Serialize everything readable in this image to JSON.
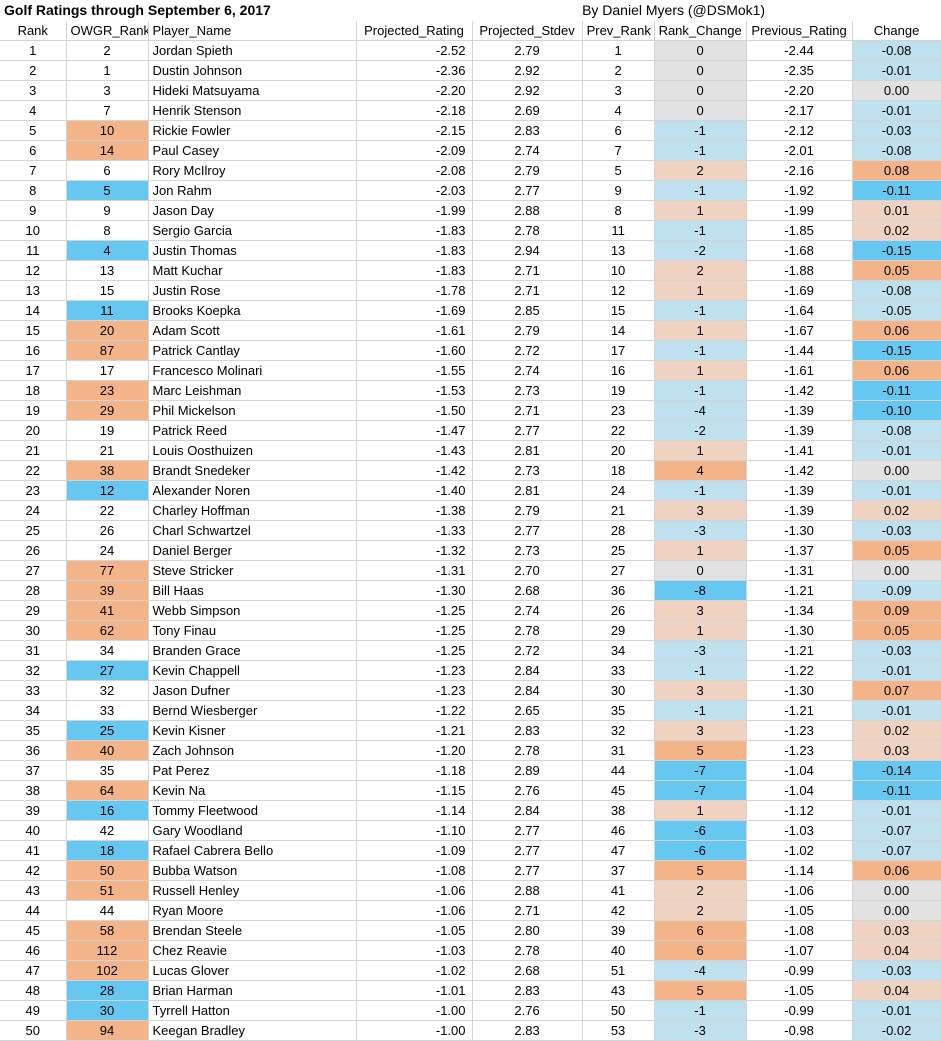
{
  "title": "Golf Ratings through September 6, 2017",
  "byline": "By Daniel Myers (@DSMok1)",
  "colors": {
    "blue_strong": "#66c8f0",
    "blue_light": "#bfe0ee",
    "orange_strong": "#f4b48a",
    "orange_light": "#efd2c2",
    "gray_neutral": "#e2e2e2"
  },
  "headers": [
    "Rank",
    "OWGR_Rank",
    "Player_Name",
    "Projected_Rating",
    "Projected_Stdev",
    "Prev_Rank",
    "Rank_Change",
    "Previous_Rating",
    "Change"
  ],
  "rows": [
    {
      "rank": "1",
      "owgr": "2",
      "name": "Jordan Spieth",
      "proj": "-2.52",
      "stdev": "2.79",
      "prev_rank": "1",
      "rank_change": "0",
      "prev_rating": "-2.44",
      "change": "-0.08"
    },
    {
      "rank": "2",
      "owgr": "1",
      "name": "Dustin Johnson",
      "proj": "-2.36",
      "stdev": "2.92",
      "prev_rank": "2",
      "rank_change": "0",
      "prev_rating": "-2.35",
      "change": "-0.01"
    },
    {
      "rank": "3",
      "owgr": "3",
      "name": "Hideki Matsuyama",
      "proj": "-2.20",
      "stdev": "2.92",
      "prev_rank": "3",
      "rank_change": "0",
      "prev_rating": "-2.20",
      "change": "0.00"
    },
    {
      "rank": "4",
      "owgr": "7",
      "name": "Henrik Stenson",
      "proj": "-2.18",
      "stdev": "2.69",
      "prev_rank": "4",
      "rank_change": "0",
      "prev_rating": "-2.17",
      "change": "-0.01"
    },
    {
      "rank": "5",
      "owgr": "10",
      "name": "Rickie Fowler",
      "proj": "-2.15",
      "stdev": "2.83",
      "prev_rank": "6",
      "rank_change": "-1",
      "prev_rating": "-2.12",
      "change": "-0.03"
    },
    {
      "rank": "6",
      "owgr": "14",
      "name": "Paul Casey",
      "proj": "-2.09",
      "stdev": "2.74",
      "prev_rank": "7",
      "rank_change": "-1",
      "prev_rating": "-2.01",
      "change": "-0.08"
    },
    {
      "rank": "7",
      "owgr": "6",
      "name": "Rory McIlroy",
      "proj": "-2.08",
      "stdev": "2.79",
      "prev_rank": "5",
      "rank_change": "2",
      "prev_rating": "-2.16",
      "change": "0.08"
    },
    {
      "rank": "8",
      "owgr": "5",
      "name": "Jon Rahm",
      "proj": "-2.03",
      "stdev": "2.77",
      "prev_rank": "9",
      "rank_change": "-1",
      "prev_rating": "-1.92",
      "change": "-0.11"
    },
    {
      "rank": "9",
      "owgr": "9",
      "name": "Jason Day",
      "proj": "-1.99",
      "stdev": "2.88",
      "prev_rank": "8",
      "rank_change": "1",
      "prev_rating": "-1.99",
      "change": "0.01"
    },
    {
      "rank": "10",
      "owgr": "8",
      "name": "Sergio Garcia",
      "proj": "-1.83",
      "stdev": "2.78",
      "prev_rank": "11",
      "rank_change": "-1",
      "prev_rating": "-1.85",
      "change": "0.02"
    },
    {
      "rank": "11",
      "owgr": "4",
      "name": "Justin Thomas",
      "proj": "-1.83",
      "stdev": "2.94",
      "prev_rank": "13",
      "rank_change": "-2",
      "prev_rating": "-1.68",
      "change": "-0.15"
    },
    {
      "rank": "12",
      "owgr": "13",
      "name": "Matt Kuchar",
      "proj": "-1.83",
      "stdev": "2.71",
      "prev_rank": "10",
      "rank_change": "2",
      "prev_rating": "-1.88",
      "change": "0.05"
    },
    {
      "rank": "13",
      "owgr": "15",
      "name": "Justin Rose",
      "proj": "-1.78",
      "stdev": "2.71",
      "prev_rank": "12",
      "rank_change": "1",
      "prev_rating": "-1.69",
      "change": "-0.08"
    },
    {
      "rank": "14",
      "owgr": "11",
      "name": "Brooks Koepka",
      "proj": "-1.69",
      "stdev": "2.85",
      "prev_rank": "15",
      "rank_change": "-1",
      "prev_rating": "-1.64",
      "change": "-0.05"
    },
    {
      "rank": "15",
      "owgr": "20",
      "name": "Adam Scott",
      "proj": "-1.61",
      "stdev": "2.79",
      "prev_rank": "14",
      "rank_change": "1",
      "prev_rating": "-1.67",
      "change": "0.06"
    },
    {
      "rank": "16",
      "owgr": "87",
      "name": "Patrick Cantlay",
      "proj": "-1.60",
      "stdev": "2.72",
      "prev_rank": "17",
      "rank_change": "-1",
      "prev_rating": "-1.44",
      "change": "-0.15"
    },
    {
      "rank": "17",
      "owgr": "17",
      "name": "Francesco Molinari",
      "proj": "-1.55",
      "stdev": "2.74",
      "prev_rank": "16",
      "rank_change": "1",
      "prev_rating": "-1.61",
      "change": "0.06"
    },
    {
      "rank": "18",
      "owgr": "23",
      "name": "Marc Leishman",
      "proj": "-1.53",
      "stdev": "2.73",
      "prev_rank": "19",
      "rank_change": "-1",
      "prev_rating": "-1.42",
      "change": "-0.11"
    },
    {
      "rank": "19",
      "owgr": "29",
      "name": "Phil Mickelson",
      "proj": "-1.50",
      "stdev": "2.71",
      "prev_rank": "23",
      "rank_change": "-4",
      "prev_rating": "-1.39",
      "change": "-0.10"
    },
    {
      "rank": "20",
      "owgr": "19",
      "name": "Patrick Reed",
      "proj": "-1.47",
      "stdev": "2.77",
      "prev_rank": "22",
      "rank_change": "-2",
      "prev_rating": "-1.39",
      "change": "-0.08"
    },
    {
      "rank": "21",
      "owgr": "21",
      "name": "Louis Oosthuizen",
      "proj": "-1.43",
      "stdev": "2.81",
      "prev_rank": "20",
      "rank_change": "1",
      "prev_rating": "-1.41",
      "change": "-0.01"
    },
    {
      "rank": "22",
      "owgr": "38",
      "name": "Brandt Snedeker",
      "proj": "-1.42",
      "stdev": "2.73",
      "prev_rank": "18",
      "rank_change": "4",
      "prev_rating": "-1.42",
      "change": "0.00"
    },
    {
      "rank": "23",
      "owgr": "12",
      "name": "Alexander Noren",
      "proj": "-1.40",
      "stdev": "2.81",
      "prev_rank": "24",
      "rank_change": "-1",
      "prev_rating": "-1.39",
      "change": "-0.01"
    },
    {
      "rank": "24",
      "owgr": "22",
      "name": "Charley Hoffman",
      "proj": "-1.38",
      "stdev": "2.79",
      "prev_rank": "21",
      "rank_change": "3",
      "prev_rating": "-1.39",
      "change": "0.02"
    },
    {
      "rank": "25",
      "owgr": "26",
      "name": "Charl Schwartzel",
      "proj": "-1.33",
      "stdev": "2.77",
      "prev_rank": "28",
      "rank_change": "-3",
      "prev_rating": "-1.30",
      "change": "-0.03"
    },
    {
      "rank": "26",
      "owgr": "24",
      "name": "Daniel Berger",
      "proj": "-1.32",
      "stdev": "2.73",
      "prev_rank": "25",
      "rank_change": "1",
      "prev_rating": "-1.37",
      "change": "0.05"
    },
    {
      "rank": "27",
      "owgr": "77",
      "name": "Steve Stricker",
      "proj": "-1.31",
      "stdev": "2.70",
      "prev_rank": "27",
      "rank_change": "0",
      "prev_rating": "-1.31",
      "change": "0.00"
    },
    {
      "rank": "28",
      "owgr": "39",
      "name": "Bill Haas",
      "proj": "-1.30",
      "stdev": "2.68",
      "prev_rank": "36",
      "rank_change": "-8",
      "prev_rating": "-1.21",
      "change": "-0.09"
    },
    {
      "rank": "29",
      "owgr": "41",
      "name": "Webb Simpson",
      "proj": "-1.25",
      "stdev": "2.74",
      "prev_rank": "26",
      "rank_change": "3",
      "prev_rating": "-1.34",
      "change": "0.09"
    },
    {
      "rank": "30",
      "owgr": "62",
      "name": "Tony Finau",
      "proj": "-1.25",
      "stdev": "2.78",
      "prev_rank": "29",
      "rank_change": "1",
      "prev_rating": "-1.30",
      "change": "0.05"
    },
    {
      "rank": "31",
      "owgr": "34",
      "name": "Branden Grace",
      "proj": "-1.25",
      "stdev": "2.72",
      "prev_rank": "34",
      "rank_change": "-3",
      "prev_rating": "-1.21",
      "change": "-0.03"
    },
    {
      "rank": "32",
      "owgr": "27",
      "name": "Kevin Chappell",
      "proj": "-1.23",
      "stdev": "2.84",
      "prev_rank": "33",
      "rank_change": "-1",
      "prev_rating": "-1.22",
      "change": "-0.01"
    },
    {
      "rank": "33",
      "owgr": "32",
      "name": "Jason Dufner",
      "proj": "-1.23",
      "stdev": "2.84",
      "prev_rank": "30",
      "rank_change": "3",
      "prev_rating": "-1.30",
      "change": "0.07"
    },
    {
      "rank": "34",
      "owgr": "33",
      "name": "Bernd Wiesberger",
      "proj": "-1.22",
      "stdev": "2.65",
      "prev_rank": "35",
      "rank_change": "-1",
      "prev_rating": "-1.21",
      "change": "-0.01"
    },
    {
      "rank": "35",
      "owgr": "25",
      "name": "Kevin Kisner",
      "proj": "-1.21",
      "stdev": "2.83",
      "prev_rank": "32",
      "rank_change": "3",
      "prev_rating": "-1.23",
      "change": "0.02"
    },
    {
      "rank": "36",
      "owgr": "40",
      "name": "Zach Johnson",
      "proj": "-1.20",
      "stdev": "2.78",
      "prev_rank": "31",
      "rank_change": "5",
      "prev_rating": "-1.23",
      "change": "0.03"
    },
    {
      "rank": "37",
      "owgr": "35",
      "name": "Pat Perez",
      "proj": "-1.18",
      "stdev": "2.89",
      "prev_rank": "44",
      "rank_change": "-7",
      "prev_rating": "-1.04",
      "change": "-0.14"
    },
    {
      "rank": "38",
      "owgr": "64",
      "name": "Kevin Na",
      "proj": "-1.15",
      "stdev": "2.76",
      "prev_rank": "45",
      "rank_change": "-7",
      "prev_rating": "-1.04",
      "change": "-0.11"
    },
    {
      "rank": "39",
      "owgr": "16",
      "name": "Tommy Fleetwood",
      "proj": "-1.14",
      "stdev": "2.84",
      "prev_rank": "38",
      "rank_change": "1",
      "prev_rating": "-1.12",
      "change": "-0.01"
    },
    {
      "rank": "40",
      "owgr": "42",
      "name": "Gary Woodland",
      "proj": "-1.10",
      "stdev": "2.77",
      "prev_rank": "46",
      "rank_change": "-6",
      "prev_rating": "-1.03",
      "change": "-0.07"
    },
    {
      "rank": "41",
      "owgr": "18",
      "name": "Rafael Cabrera Bello",
      "proj": "-1.09",
      "stdev": "2.77",
      "prev_rank": "47",
      "rank_change": "-6",
      "prev_rating": "-1.02",
      "change": "-0.07"
    },
    {
      "rank": "42",
      "owgr": "50",
      "name": "Bubba Watson",
      "proj": "-1.08",
      "stdev": "2.77",
      "prev_rank": "37",
      "rank_change": "5",
      "prev_rating": "-1.14",
      "change": "0.06"
    },
    {
      "rank": "43",
      "owgr": "51",
      "name": "Russell Henley",
      "proj": "-1.06",
      "stdev": "2.88",
      "prev_rank": "41",
      "rank_change": "2",
      "prev_rating": "-1.06",
      "change": "0.00"
    },
    {
      "rank": "44",
      "owgr": "44",
      "name": "Ryan Moore",
      "proj": "-1.06",
      "stdev": "2.71",
      "prev_rank": "42",
      "rank_change": "2",
      "prev_rating": "-1.05",
      "change": "0.00"
    },
    {
      "rank": "45",
      "owgr": "58",
      "name": "Brendan Steele",
      "proj": "-1.05",
      "stdev": "2.80",
      "prev_rank": "39",
      "rank_change": "6",
      "prev_rating": "-1.08",
      "change": "0.03"
    },
    {
      "rank": "46",
      "owgr": "112",
      "name": "Chez Reavie",
      "proj": "-1.03",
      "stdev": "2.78",
      "prev_rank": "40",
      "rank_change": "6",
      "prev_rating": "-1.07",
      "change": "0.04"
    },
    {
      "rank": "47",
      "owgr": "102",
      "name": "Lucas Glover",
      "proj": "-1.02",
      "stdev": "2.68",
      "prev_rank": "51",
      "rank_change": "-4",
      "prev_rating": "-0.99",
      "change": "-0.03"
    },
    {
      "rank": "48",
      "owgr": "28",
      "name": "Brian Harman",
      "proj": "-1.01",
      "stdev": "2.83",
      "prev_rank": "43",
      "rank_change": "5",
      "prev_rating": "-1.05",
      "change": "0.04"
    },
    {
      "rank": "49",
      "owgr": "30",
      "name": "Tyrrell Hatton",
      "proj": "-1.00",
      "stdev": "2.76",
      "prev_rank": "50",
      "rank_change": "-1",
      "prev_rating": "-0.99",
      "change": "-0.01"
    },
    {
      "rank": "50",
      "owgr": "94",
      "name": "Keegan Bradley",
      "proj": "-1.00",
      "stdev": "2.83",
      "prev_rank": "53",
      "rank_change": "-3",
      "prev_rating": "-0.98",
      "change": "-0.02"
    }
  ]
}
